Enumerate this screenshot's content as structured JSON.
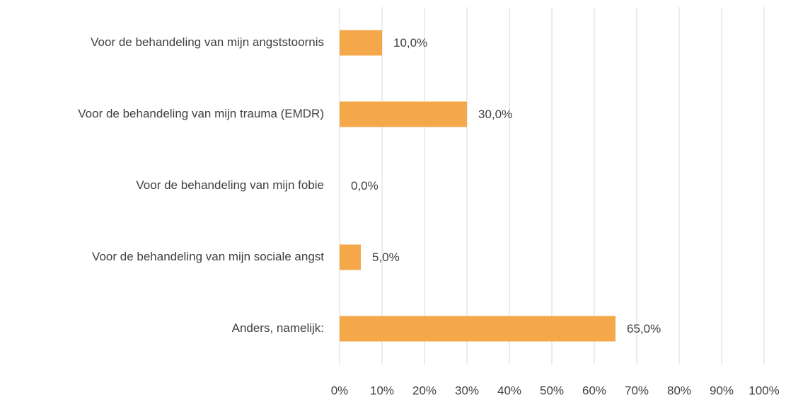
{
  "chart_data": {
    "type": "bar",
    "orientation": "horizontal",
    "categories": [
      "Voor de behandeling van mijn angststoornis",
      "Voor de behandeling van mijn trauma (EMDR)",
      "Voor de behandeling van mijn fobie",
      "Voor de behandeling van mijn sociale angst",
      "Anders, namelijk:"
    ],
    "values": [
      10,
      30,
      0,
      5,
      65
    ],
    "value_labels": [
      "10,0%",
      "30,0%",
      "0,0%",
      "5,0%",
      "65,0%"
    ],
    "color": "#f4a84a",
    "xlim": [
      0,
      100
    ],
    "xticks": [
      {
        "value": 0,
        "label": "0%"
      },
      {
        "value": 10,
        "label": "10%"
      },
      {
        "value": 20,
        "label": "20%"
      },
      {
        "value": 30,
        "label": "30%"
      },
      {
        "value": 40,
        "label": "40%"
      },
      {
        "value": 50,
        "label": "50%"
      },
      {
        "value": 60,
        "label": "60%"
      },
      {
        "value": 70,
        "label": "70%"
      },
      {
        "value": 80,
        "label": "80%"
      },
      {
        "value": 90,
        "label": "90%"
      },
      {
        "value": 100,
        "label": "100%"
      }
    ],
    "grid": true
  }
}
